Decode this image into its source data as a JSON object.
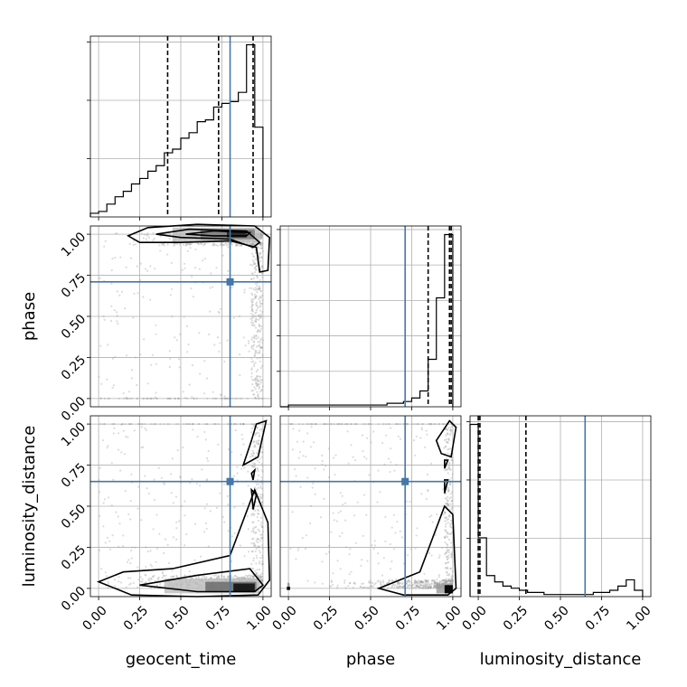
{
  "chart_data": {
    "type": "corner",
    "parameters": [
      "geocent_time",
      "phase",
      "luminosity_distance"
    ],
    "range": [
      -0.05,
      1.05
    ],
    "tick_labels": [
      "0.00",
      "0.25",
      "0.50",
      "0.75",
      "1.00"
    ],
    "truths": [
      0.8,
      0.71,
      0.65
    ],
    "truth_color": "#4477aa",
    "quantiles": [
      [
        0.42,
        0.73,
        0.94
      ],
      [
        0.85,
        0.98,
        0.99
      ],
      [
        0.0,
        0.01,
        0.29
      ]
    ],
    "histograms": [
      {
        "parameter": "geocent_time",
        "bin_edges_start": -0.05,
        "bin_width": 0.05,
        "counts": [
          2,
          3,
          7,
          11,
          14,
          18,
          21,
          25,
          28,
          35,
          37,
          43,
          46,
          52,
          53,
          60,
          62,
          63,
          68,
          94,
          49
        ]
      },
      {
        "parameter": "phase",
        "bin_edges_start": -0.05,
        "bin_width": 0.05,
        "counts": [
          0,
          1,
          1,
          1,
          1,
          1,
          1,
          1,
          1,
          1,
          1,
          1,
          1,
          2,
          2,
          3,
          5,
          9,
          27,
          62,
          98
        ]
      },
      {
        "parameter": "luminosity_distance",
        "bin_edges_start": -0.05,
        "bin_width": 0.05,
        "counts": [
          82,
          28,
          10,
          7,
          5,
          4,
          3,
          2,
          2,
          1,
          1,
          1,
          1,
          1,
          1,
          2,
          2,
          3,
          5,
          8,
          3
        ]
      }
    ],
    "grid": true
  }
}
